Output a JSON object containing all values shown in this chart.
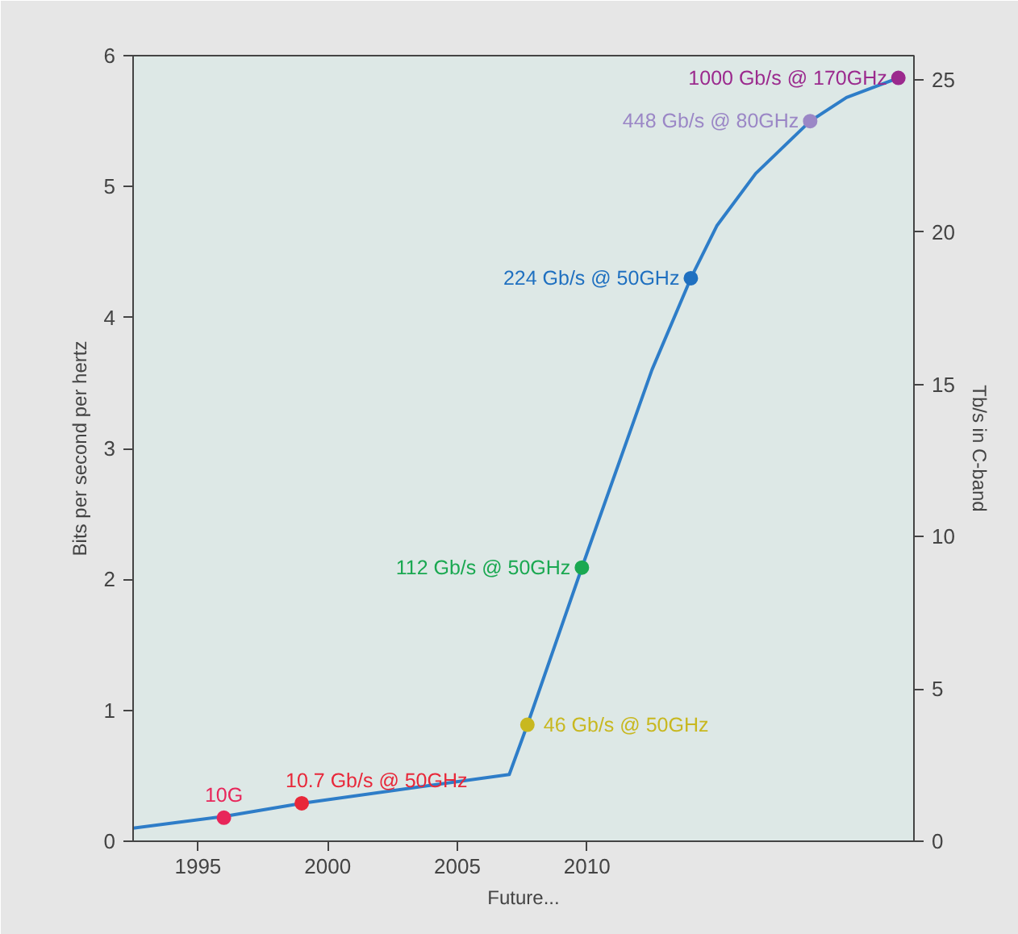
{
  "chart_data": {
    "type": "line",
    "xlabel": "Future...",
    "ylabel": "Bits per second per hertz",
    "y2label": "Tb/s in C-band",
    "xlim": [
      1992.5,
      2022.6
    ],
    "xticks": [
      1995,
      2000,
      2005,
      2010
    ],
    "ylim": [
      0,
      6
    ],
    "yticks": [
      0,
      1,
      2,
      3,
      4,
      5,
      6
    ],
    "y2lim": [
      0,
      25.8
    ],
    "y2ticks": [
      0,
      5,
      10,
      15,
      20,
      25
    ],
    "grid": false,
    "marker": "circle",
    "series": [
      {
        "color": "#2e7dc8",
        "marker": "none",
        "x": [
          1992.5,
          1996,
          1999,
          2007,
          2007.7,
          2009.8,
          2012.5,
          2014,
          2015,
          2016.5,
          2018.6,
          2020,
          2022
        ],
        "values": [
          0.1,
          0.19,
          0.29,
          0.51,
          0.89,
          2.09,
          3.6,
          4.3,
          4.7,
          5.1,
          5.5,
          5.68,
          5.83
        ]
      },
      {
        "type": "scatter",
        "name": "10G",
        "color": "#e8265a",
        "x": [
          1996
        ],
        "values": [
          0.18
        ]
      },
      {
        "type": "scatter",
        "name": "10.7 Gb/s @ 50GHz",
        "color": "#e8283a",
        "x": [
          1999
        ],
        "values": [
          0.29
        ]
      },
      {
        "type": "scatter",
        "name": "46 Gb/s @ 50GHz",
        "color": "#c8b820",
        "x": [
          2007.7
        ],
        "values": [
          0.89
        ]
      },
      {
        "type": "scatter",
        "name": "112 Gb/s @ 50GHz",
        "color": "#1aa851",
        "x": [
          2009.8
        ],
        "values": [
          2.09
        ]
      },
      {
        "type": "scatter",
        "name": "224 Gb/s @ 50GHz",
        "color": "#1f70c0",
        "x": [
          2014
        ],
        "values": [
          4.3
        ]
      },
      {
        "type": "scatter",
        "name": "448 Gb/s @ 80GHz",
        "color": "#9b87c6",
        "x": [
          2018.6
        ],
        "values": [
          5.5
        ]
      },
      {
        "type": "scatter",
        "name": "1000 Gb/s @ 170GHz",
        "color": "#9b2a8e",
        "x": [
          2022
        ],
        "values": [
          5.83
        ]
      }
    ]
  }
}
